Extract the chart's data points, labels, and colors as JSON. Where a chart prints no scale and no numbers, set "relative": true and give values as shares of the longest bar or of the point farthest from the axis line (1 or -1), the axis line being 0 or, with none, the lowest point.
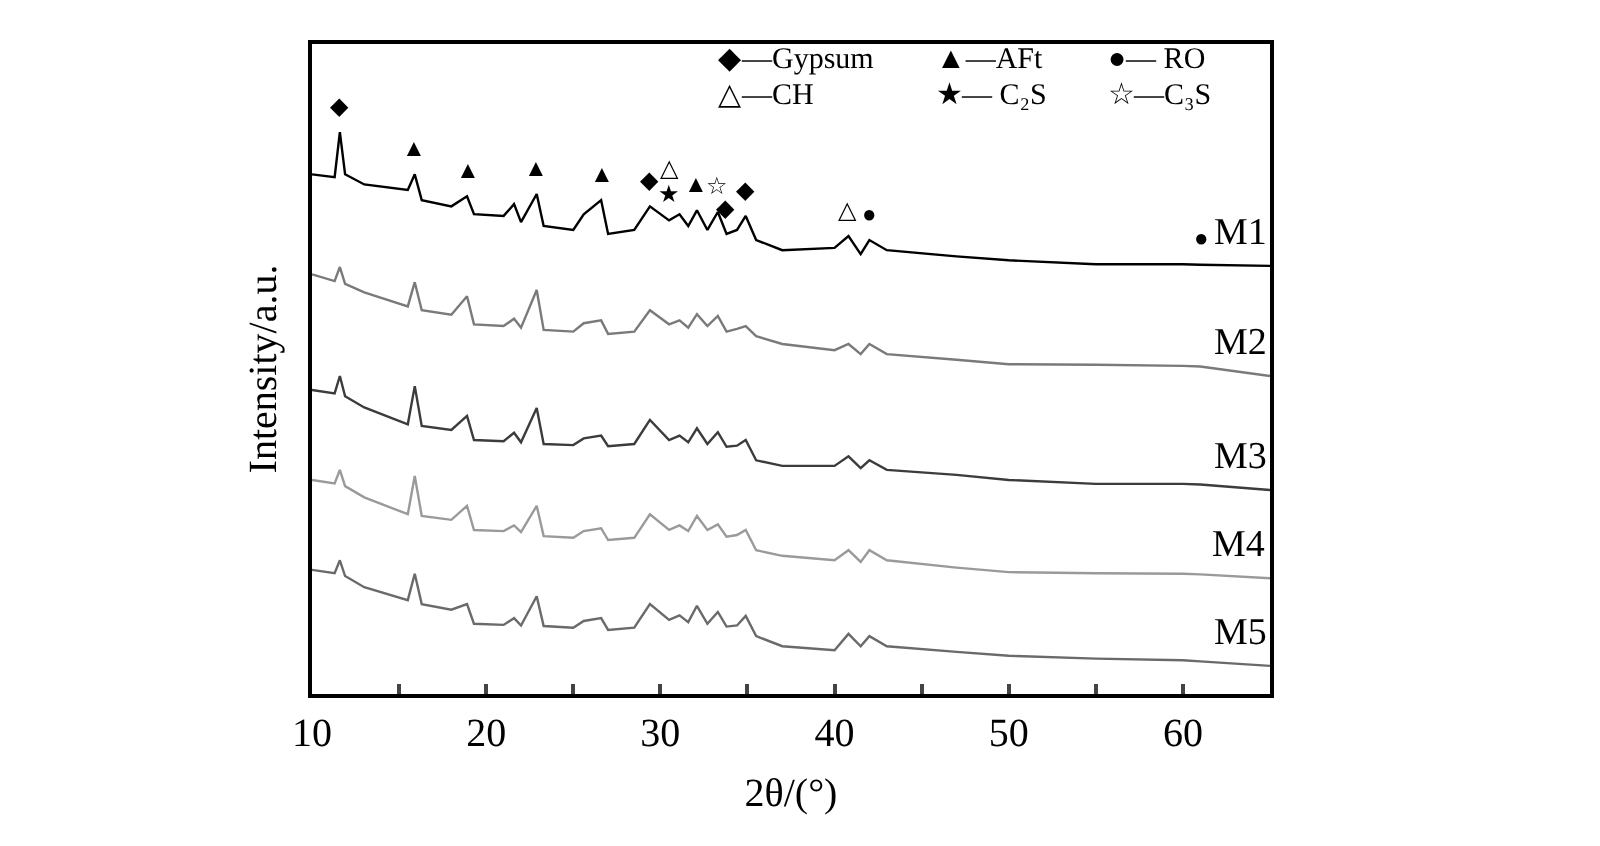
{
  "chart_data": {
    "type": "line",
    "relative": true,
    "xlabel": "2θ/(°)",
    "ylabel": "Intensity/a.u.",
    "xlim": [
      10,
      65
    ],
    "xticks": [
      10,
      {
        "value": 15,
        "label": null
      },
      20,
      {
        "value": 25,
        "label": null
      },
      30,
      {
        "value": 35,
        "label": null
      },
      40,
      {
        "value": 45,
        "label": null
      },
      50,
      {
        "value": 55,
        "label": null
      },
      60,
      {
        "value": 65,
        "label": null
      }
    ],
    "x": [
      10,
      11.3,
      11.6,
      11.9,
      13,
      15.5,
      15.9,
      16.3,
      18,
      18.9,
      19.3,
      21,
      21.6,
      22,
      22.9,
      23.3,
      25,
      25.6,
      26.6,
      27,
      28.5,
      29.4,
      30.5,
      31.1,
      31.6,
      32.1,
      32.7,
      33.3,
      33.8,
      34.4,
      34.9,
      35.5,
      37,
      40,
      40.8,
      41.5,
      42,
      43,
      47,
      50,
      55,
      60,
      61,
      65
    ],
    "series": [
      {
        "name": "M1",
        "color": "#000000",
        "values": [
          0.925,
          0.92,
          1.0,
          0.925,
          0.907,
          0.897,
          0.925,
          0.879,
          0.868,
          0.886,
          0.854,
          0.851,
          0.872,
          0.84,
          0.89,
          0.833,
          0.826,
          0.854,
          0.879,
          0.819,
          0.826,
          0.868,
          0.843,
          0.854,
          0.833,
          0.861,
          0.826,
          0.858,
          0.819,
          0.826,
          0.851,
          0.808,
          0.79,
          0.794,
          0.815,
          0.783,
          0.808,
          0.79,
          0.779,
          0.772,
          0.765,
          0.765,
          0.764,
          0.762
        ]
      },
      {
        "name": "M2",
        "color": "#7a7a7a",
        "values": [
          0.747,
          0.735,
          0.76,
          0.73,
          0.715,
          0.69,
          0.733,
          0.683,
          0.675,
          0.708,
          0.658,
          0.655,
          0.668,
          0.652,
          0.719,
          0.648,
          0.645,
          0.66,
          0.665,
          0.641,
          0.645,
          0.683,
          0.658,
          0.665,
          0.652,
          0.676,
          0.655,
          0.673,
          0.645,
          0.65,
          0.655,
          0.637,
          0.623,
          0.612,
          0.623,
          0.605,
          0.623,
          0.605,
          0.595,
          0.587,
          0.586,
          0.584,
          0.583,
          0.566
        ]
      },
      {
        "name": "M3",
        "color": "#3c3c3c",
        "values": [
          0.541,
          0.535,
          0.566,
          0.53,
          0.51,
          0.48,
          0.548,
          0.477,
          0.47,
          0.495,
          0.452,
          0.45,
          0.465,
          0.448,
          0.509,
          0.445,
          0.443,
          0.455,
          0.46,
          0.441,
          0.445,
          0.488,
          0.452,
          0.46,
          0.448,
          0.473,
          0.445,
          0.466,
          0.44,
          0.442,
          0.452,
          0.416,
          0.406,
          0.406,
          0.423,
          0.402,
          0.416,
          0.399,
          0.39,
          0.381,
          0.374,
          0.374,
          0.373,
          0.363
        ]
      },
      {
        "name": "M4",
        "color": "#9a9a9a",
        "values": [
          0.381,
          0.375,
          0.399,
          0.37,
          0.35,
          0.32,
          0.388,
          0.317,
          0.31,
          0.335,
          0.292,
          0.29,
          0.3,
          0.288,
          0.335,
          0.281,
          0.278,
          0.29,
          0.295,
          0.274,
          0.278,
          0.32,
          0.292,
          0.3,
          0.29,
          0.317,
          0.292,
          0.302,
          0.28,
          0.283,
          0.292,
          0.256,
          0.246,
          0.238,
          0.256,
          0.235,
          0.256,
          0.238,
          0.225,
          0.217,
          0.215,
          0.214,
          0.213,
          0.206
        ]
      },
      {
        "name": "M5",
        "color": "#6a6a6a",
        "values": [
          0.221,
          0.215,
          0.238,
          0.21,
          0.19,
          0.167,
          0.214,
          0.16,
          0.15,
          0.16,
          0.125,
          0.123,
          0.135,
          0.122,
          0.174,
          0.121,
          0.118,
          0.13,
          0.135,
          0.114,
          0.118,
          0.16,
          0.132,
          0.14,
          0.128,
          0.157,
          0.125,
          0.146,
          0.12,
          0.122,
          0.139,
          0.103,
          0.085,
          0.078,
          0.107,
          0.085,
          0.103,
          0.085,
          0.075,
          0.068,
          0.063,
          0.06,
          0.058,
          0.05
        ]
      }
    ],
    "annotations": [
      "◆—Gypsum",
      "▲—AFt",
      "●— RO",
      "△—CH",
      "★— C₂S",
      "☆—C₃S",
      {
        "text": "◆",
        "x": 11.6,
        "y": 1.0
      },
      {
        "text": "▲",
        "x": 15.9,
        "y": 0.925
      },
      {
        "text": "▲",
        "x": 18.9,
        "y": 0.886
      },
      {
        "text": "▲",
        "x": 22.9,
        "y": 0.89
      },
      {
        "text": "▲",
        "x": 26.6,
        "y": 0.879
      },
      {
        "text": "◆",
        "x": 29.4,
        "y": 0.868
      },
      {
        "text": "★",
        "x": 30.5,
        "y": 0.843
      },
      {
        "text": "△",
        "x": 30.5,
        "y": 0.843
      },
      {
        "text": "▲",
        "x": 32.1,
        "y": 0.861
      },
      {
        "text": "☆",
        "x": 33.3,
        "y": 0.858
      },
      {
        "text": "◆",
        "x": 33.8,
        "y": 0.819
      },
      {
        "text": "◆",
        "x": 34.9,
        "y": 0.851
      },
      {
        "text": "△",
        "x": 40.8,
        "y": 0.815
      },
      {
        "text": "●",
        "x": 42,
        "y": 0.808
      },
      {
        "text": "●",
        "x": 61,
        "y": 0.764
      }
    ]
  }
}
